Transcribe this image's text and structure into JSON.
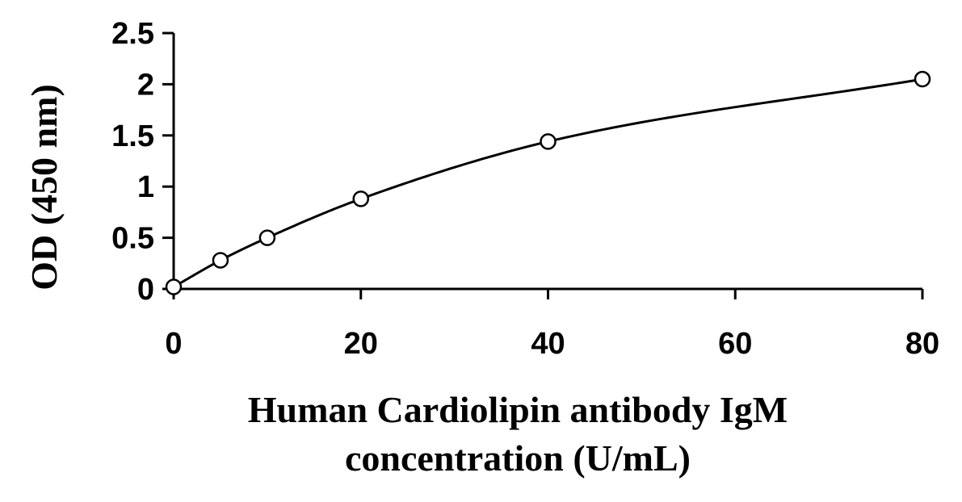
{
  "chart_data": {
    "type": "scatter",
    "title": "",
    "xlabel_lines": [
      "Human Cardiolipin antibody IgM",
      "concentration (U/mL)"
    ],
    "ylabel": "OD (450 nm)",
    "xlim": [
      0,
      80
    ],
    "ylim": [
      0,
      2.5
    ],
    "x_ticks": [
      "0",
      "20",
      "40",
      "60",
      "80"
    ],
    "y_ticks": [
      "0",
      "0.5",
      "1",
      "1.5",
      "2",
      "2.5"
    ],
    "grid": false,
    "legend": false,
    "series": [
      {
        "points": [
          {
            "x": 0,
            "y": 0.02
          },
          {
            "x": 5,
            "y": 0.28
          },
          {
            "x": 10,
            "y": 0.5
          },
          {
            "x": 20,
            "y": 0.88
          },
          {
            "x": 40,
            "y": 1.44
          },
          {
            "x": 80,
            "y": 2.05
          }
        ],
        "marker": "open-circle",
        "fit": "smooth-curve",
        "color": "#000000"
      }
    ]
  }
}
